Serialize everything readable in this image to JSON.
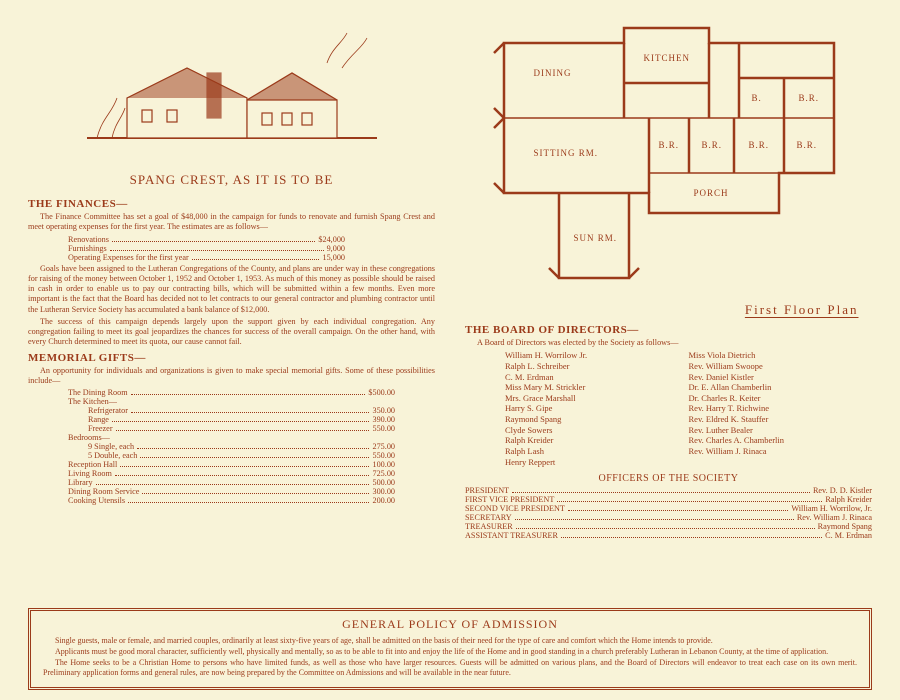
{
  "caption": "SPANG CREST, AS IT IS TO BE",
  "floorplan_label": "First Floor Plan",
  "colors": {
    "ink": "#9b3a1a",
    "paper": "#f8f3d8"
  },
  "finances": {
    "heading": "THE FINANCES—",
    "p1": "The Finance Committee has set a goal of $48,000 in the campaign for funds to renovate and furnish Spang Crest and meet operating expenses for the first year. The estimates are as follows—",
    "items": [
      {
        "label": "Renovations",
        "amount": "$24,000"
      },
      {
        "label": "Furnishings",
        "amount": "9,000"
      },
      {
        "label": "Operating Expenses for the first year",
        "amount": "15,000"
      }
    ],
    "p2": "Goals have been assigned to the Lutheran Congregations of the County, and plans are under way in these congregations for raising of the money between October 1, 1952 and October 1, 1953. As much of this money as possible should be raised in cash in order to enable us to pay our contracting bills, which will be submitted within a few months. Even more important is the fact that the Board has decided not to let contracts to our general contractor and plumbing contractor until the Lutheran Service Society has accumulated a bank balance of $12,000.",
    "p3": "The success of this campaign depends largely upon the support given by each individual congregation. Any congregation failing to meet its goal jeopardizes the chances for success of the overall campaign. On the other hand, with every Church determined to meet its quota, our cause cannot fail."
  },
  "gifts": {
    "heading": "MEMORIAL GIFTS—",
    "p1": "An opportunity for individuals and organizations is given to make special memorial gifts. Some of these possibilities include—",
    "rows": [
      {
        "label": "The Dining Room",
        "amount": "$500.00",
        "sub": false
      },
      {
        "label": "The Kitchen—",
        "amount": "",
        "sub": false
      },
      {
        "label": "Refrigerator",
        "amount": "350.00",
        "sub": true
      },
      {
        "label": "Range",
        "amount": "390.00",
        "sub": true
      },
      {
        "label": "Freezer",
        "amount": "550.00",
        "sub": true
      },
      {
        "label": "Bedrooms—",
        "amount": "",
        "sub": false
      },
      {
        "label": "9 Single, each",
        "amount": "275.00",
        "sub": true
      },
      {
        "label": "5 Double, each",
        "amount": "550.00",
        "sub": true
      },
      {
        "label": "Reception Hall",
        "amount": "100.00",
        "sub": false
      },
      {
        "label": "Living Room",
        "amount": "725.00",
        "sub": false
      },
      {
        "label": "Library",
        "amount": "500.00",
        "sub": false
      },
      {
        "label": "Dining Room Service",
        "amount": "300.00",
        "sub": false
      },
      {
        "label": "Cooking Utensils",
        "amount": "200.00",
        "sub": false
      }
    ]
  },
  "rooms": {
    "dining": "DINING",
    "kitchen": "KITCHEN",
    "sitting": "SITTING RM.",
    "sun": "SUN RM.",
    "porch": "PORCH",
    "br": "B.R.",
    "b": "B."
  },
  "board": {
    "heading": "THE BOARD OF DIRECTORS—",
    "intro": "A Board of Directors was elected by the Society as follows—",
    "left": [
      "William H. Worrilow Jr.",
      "Ralph L. Schreiber",
      "C. M. Erdman",
      "Miss Mary M. Strickler",
      "Mrs. Grace Marshall",
      "Harry S. Gipe",
      "Raymond Spang",
      "Clyde Sowers",
      "Ralph Kreider",
      "Ralph Lash",
      "Henry Reppert"
    ],
    "right": [
      "Miss Viola Dietrich",
      "Rev. William Swoope",
      "Rev. Daniel Kistler",
      "Dr. E. Allan Chamberlin",
      "Dr. Charles R. Keiter",
      "Rev. Harry T. Richwine",
      "Rev. Eldred K. Stauffer",
      "Rev. Luther Bealer",
      "Rev. Charles A. Chamberlin",
      "Rev. William J. Rinaca"
    ]
  },
  "officers": {
    "title": "OFFICERS OF THE SOCIETY",
    "rows": [
      {
        "role": "PRESIDENT",
        "name": "Rev. D. D. Kistler"
      },
      {
        "role": "FIRST VICE PRESIDENT",
        "name": "Ralph Kreider"
      },
      {
        "role": "SECOND VICE PRESIDENT",
        "name": "William H. Worrilow, Jr."
      },
      {
        "role": "SECRETARY",
        "name": "Rev. William J. Rinaca"
      },
      {
        "role": "TREASURER",
        "name": "Raymond Spang"
      },
      {
        "role": "ASSISTANT TREASURER",
        "name": "C. M. Erdman"
      }
    ]
  },
  "policy": {
    "title": "GENERAL POLICY OF ADMISSION",
    "p1": "Single guests, male or female, and married couples, ordinarily at least sixty-five years of age, shall be admitted on the basis of their need for the type of care and comfort which the Home intends to provide.",
    "p2": "Applicants must be good moral character, sufficiently well, physically and mentally, so as to be able to fit into and enjoy the life of the Home and in good standing in a church preferably Lutheran in Lebanon County, at the time of application.",
    "p3": "The Home seeks to be a Christian Home to persons who have limited funds, as well as those who have larger resources. Guests will be admitted on various plans, and the Board of Directors will endeavor to treat each case on its own merit. Preliminary application forms and general rules, are now being prepared by the Committee on Admissions and will be available in the near future."
  }
}
